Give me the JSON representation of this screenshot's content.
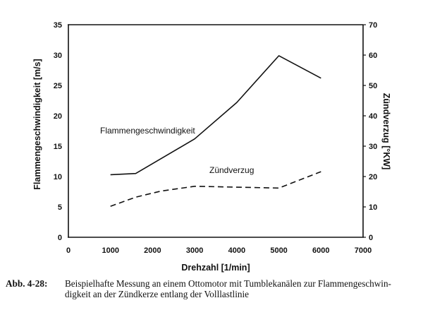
{
  "chart_data": {
    "type": "line",
    "title": "",
    "xlabel": "Drehzahl [1/min]",
    "ylabel": "Flammengeschwindigkeit [m/s]",
    "ylabel_right": "Zündverzug [°KW]",
    "xlim": [
      0,
      7000
    ],
    "ylim": [
      0,
      35
    ],
    "ylim_right": [
      0,
      70
    ],
    "x_ticks": [
      "0",
      "1000",
      "2000",
      "3000",
      "4000",
      "5000",
      "6000",
      "7000"
    ],
    "y_ticks": [
      "0",
      "5",
      "10",
      "15",
      "20",
      "25",
      "30",
      "35"
    ],
    "y_ticks_right": [
      "0",
      "10",
      "20",
      "30",
      "40",
      "50",
      "60",
      "70"
    ],
    "grid": false,
    "legend": "inline labels",
    "series": [
      {
        "name": "Flammengeschwindigkeit",
        "axis": "left",
        "style": "solid",
        "x": [
          1000,
          1600,
          3000,
          4000,
          5000,
          6000
        ],
        "values": [
          10.3,
          10.5,
          16.2,
          22.2,
          29.9,
          26.2
        ]
      },
      {
        "name": "Zündverzug",
        "axis": "right",
        "style": "dashed",
        "x": [
          1000,
          1600,
          2200,
          3000,
          5000,
          6000
        ],
        "values": [
          10.2,
          13.2,
          15.2,
          16.8,
          16.2,
          21.6
        ]
      }
    ],
    "annotations": [
      {
        "text": "Flammengeschwindigkeit",
        "near_x": 1000,
        "near_y": 17.5
      },
      {
        "text": "Zündverzug",
        "near_x": 3300,
        "near_y": 10.5
      }
    ]
  },
  "caption": {
    "figure_number": "Abb. 4-28:",
    "text": "Beispielhafte Messung an einem Ottomotor mit Tumblekanälen zur Flammengeschwindigkeit an der Zündkerze entlang der Volllastlinie",
    "line1": "Beispielhafte Messung an einem Ottomotor mit Tumblekanälen zur Flammengeschwin-",
    "line2": "digkeit an der Zündkerze entlang der Volllastlinie"
  }
}
